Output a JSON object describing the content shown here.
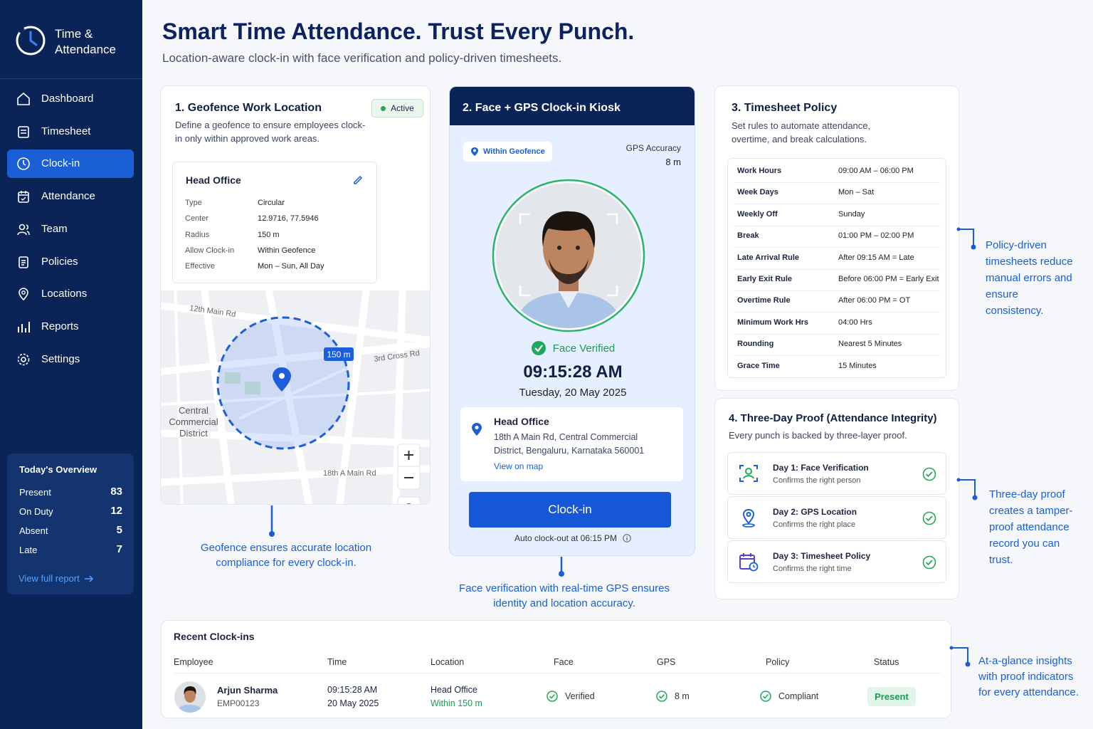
{
  "sidebar": {
    "brand": "Time & Attendance",
    "nav": [
      "Dashboard",
      "Timesheet",
      "Clock-in",
      "Attendance",
      "Team",
      "Policies",
      "Locations",
      "Reports",
      "Settings"
    ],
    "overview": {
      "title": "Today's Overview",
      "rows": [
        [
          "Present",
          "83"
        ],
        [
          "On Duty",
          "12"
        ],
        [
          "Absent",
          "5"
        ],
        [
          "Late",
          "7"
        ]
      ],
      "link": "View full report"
    }
  },
  "header": {
    "title": "Smart Time Attendance. Trust Every Punch.",
    "subtitle": "Location-aware clock-in with face verification and policy-driven timesheets."
  },
  "geofence": {
    "title": "1. Geofence Work Location",
    "badge": "Active",
    "description": "Define a geofence to ensure employees clock-in only within approved work areas.",
    "location": {
      "name": "Head Office",
      "fields": [
        [
          "Type",
          "Circular"
        ],
        [
          "Center",
          "12.9716, 77.5946"
        ],
        [
          "Radius",
          "150 m"
        ],
        [
          "Allow Clock-in",
          "Within Geofence"
        ],
        [
          "Effective",
          "Mon – Sun, All Day"
        ]
      ]
    },
    "map": {
      "streets": [
        "12th Main Rd",
        "3rd Cross Rd",
        "18th A Main Rd"
      ],
      "district": "Central Commercial District",
      "radius_label": "150 m"
    },
    "caption": "Geofence ensures accurate location compliance for every clock-in."
  },
  "kiosk": {
    "title": "2. Face + GPS Clock-in Kiosk",
    "geofence_badge": "Within Geofence",
    "gps_label": "GPS Accuracy",
    "gps_value": "8 m",
    "status": "Face Verified",
    "time": "09:15:28 AM",
    "date": "Tuesday, 20 May 2025",
    "location": {
      "name": "Head Office",
      "address": "18th A Main Rd, Central Commercial District, Bengaluru, Karnataka 560001",
      "link": "View on map"
    },
    "button": "Clock-in",
    "auto_clockout": "Auto clock-out at 06:15 PM",
    "caption": "Face verification with real-time GPS ensures identity and location accuracy."
  },
  "policy": {
    "title": "3. Timesheet Policy",
    "description": "Set rules to automate attendance, overtime, and break calculations.",
    "rows": [
      [
        "Work Hours",
        "09:00 AM – 06:00 PM"
      ],
      [
        "Week Days",
        "Mon – Sat"
      ],
      [
        "Weekly Off",
        "Sunday"
      ],
      [
        "Break",
        "01:00 PM – 02:00 PM"
      ],
      [
        "Late Arrival Rule",
        "After 09:15 AM = Late"
      ],
      [
        "Early Exit Rule",
        "Before 06:00 PM = Early Exit"
      ],
      [
        "Overtime Rule",
        "After 06:00 PM = OT"
      ],
      [
        "Minimum Work Hrs",
        "04:00 Hrs"
      ],
      [
        "Rounding",
        "Nearest 5 Minutes"
      ],
      [
        "Grace Time",
        "15 Minutes"
      ]
    ],
    "caption": "Policy-driven timesheets reduce manual errors and ensure consistency."
  },
  "proof": {
    "title": "4. Three-Day Proof (Attendance Integrity)",
    "description": "Every punch is backed by three-layer proof.",
    "items": [
      {
        "title": "Day 1: Face Verification",
        "subtitle": "Confirms the right person"
      },
      {
        "title": "Day 2: GPS Location",
        "subtitle": "Confirms the right place"
      },
      {
        "title": "Day 3: Timesheet Policy",
        "subtitle": "Confirms the right time"
      }
    ],
    "caption": "Three-day proof creates a tamper-proof attendance record you can trust."
  },
  "recent": {
    "title": "Recent Clock-ins",
    "columns": [
      "Employee",
      "Time",
      "Location",
      "Face",
      "GPS",
      "Policy",
      "Status"
    ],
    "rows": [
      {
        "name": "Arjun Sharma",
        "id": "EMP00123",
        "time": "09:15:28 AM",
        "date": "20 May 2025",
        "location": "Head Office",
        "location_detail": "Within 150 m",
        "face": "Verified",
        "gps": "8 m",
        "policy": "Compliant",
        "status": "Present"
      }
    ],
    "caption": "At-a-glance insights with proof indicators for every attendance."
  }
}
